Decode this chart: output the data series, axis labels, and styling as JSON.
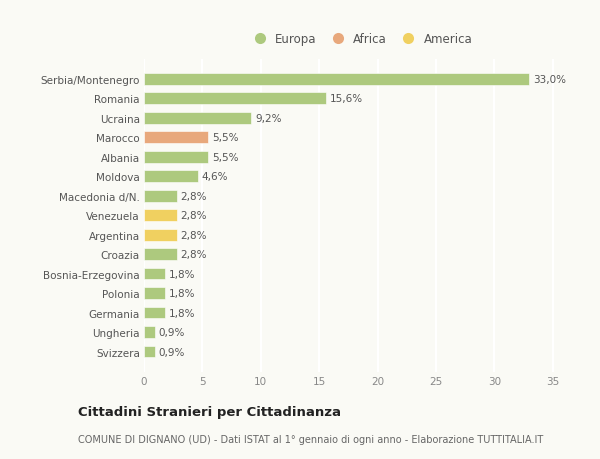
{
  "categories": [
    "Serbia/Montenegro",
    "Romania",
    "Ucraina",
    "Marocco",
    "Albania",
    "Moldova",
    "Macedonia d/N.",
    "Venezuela",
    "Argentina",
    "Croazia",
    "Bosnia-Erzegovina",
    "Polonia",
    "Germania",
    "Ungheria",
    "Svizzera"
  ],
  "values": [
    33.0,
    15.6,
    9.2,
    5.5,
    5.5,
    4.6,
    2.8,
    2.8,
    2.8,
    2.8,
    1.8,
    1.8,
    1.8,
    0.9,
    0.9
  ],
  "bar_colors": [
    "#adc97e",
    "#adc97e",
    "#adc97e",
    "#e8a87c",
    "#adc97e",
    "#adc97e",
    "#adc97e",
    "#f0d060",
    "#f0d060",
    "#adc97e",
    "#adc97e",
    "#adc97e",
    "#adc97e",
    "#adc97e",
    "#adc97e"
  ],
  "labels": [
    "33,0%",
    "15,6%",
    "9,2%",
    "5,5%",
    "5,5%",
    "4,6%",
    "2,8%",
    "2,8%",
    "2,8%",
    "2,8%",
    "1,8%",
    "1,8%",
    "1,8%",
    "0,9%",
    "0,9%"
  ],
  "legend": [
    {
      "label": "Europa",
      "color": "#adc97e"
    },
    {
      "label": "Africa",
      "color": "#e8a87c"
    },
    {
      "label": "America",
      "color": "#f0d060"
    }
  ],
  "xlim": [
    0,
    37
  ],
  "xticks": [
    0,
    5,
    10,
    15,
    20,
    25,
    30,
    35
  ],
  "title": "Cittadini Stranieri per Cittadinanza",
  "subtitle": "COMUNE DI DIGNANO (UD) - Dati ISTAT al 1° gennaio di ogni anno - Elaborazione TUTTITALIA.IT",
  "background_color": "#fafaf5",
  "gridcolor": "#ffffff",
  "label_fontsize": 7.5,
  "tick_fontsize": 7.5,
  "ytick_fontsize": 7.5,
  "bar_height": 0.6
}
